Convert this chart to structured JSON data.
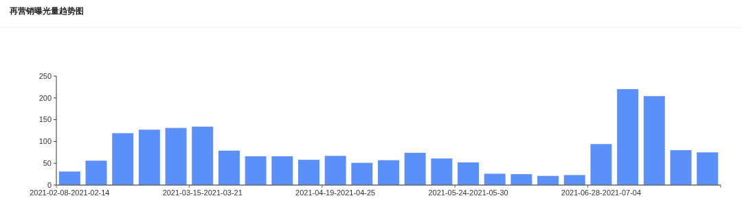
{
  "chart_data": {
    "type": "bar",
    "title": "再营销曝光量趋势图",
    "categories": [
      "2021-02-08-2021-02-14",
      null,
      null,
      null,
      null,
      "2021-03-15-2021-03-21",
      null,
      null,
      null,
      null,
      "2021-04-19-2021-04-25",
      null,
      null,
      null,
      null,
      "2021-05-24-2021-05-30",
      null,
      null,
      null,
      null,
      "2021-06-28-2021-07-04",
      null,
      null,
      null,
      null
    ],
    "values": [
      31,
      56,
      119,
      127,
      131,
      134,
      79,
      66,
      66,
      58,
      67,
      51,
      57,
      74,
      61,
      52,
      26,
      25,
      21,
      23,
      94,
      220,
      204,
      80,
      75
    ],
    "color": "#5b8ff9",
    "ylim": [
      0,
      250
    ],
    "yticks": [
      0,
      50,
      100,
      150,
      200,
      250
    ],
    "grid": false
  }
}
